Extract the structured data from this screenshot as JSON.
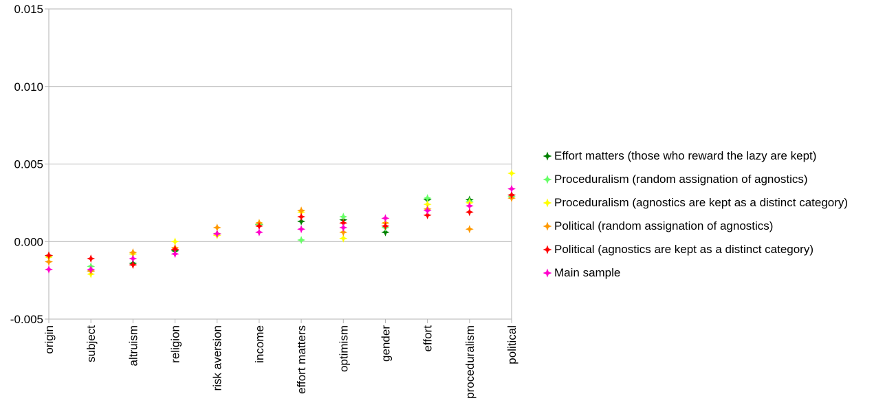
{
  "chart_data": {
    "type": "scatter",
    "title": "",
    "xlabel": "",
    "ylabel": "",
    "ylim": [
      -0.005,
      0.015
    ],
    "yticks": [
      "-0.005",
      "0.000",
      "0.005",
      "0.010",
      "0.015"
    ],
    "ytick_values": [
      -0.005,
      0.0,
      0.005,
      0.01,
      0.015
    ],
    "grid": true,
    "legend_position": "right",
    "categories": [
      "origin",
      "subject",
      "altruism",
      "religion",
      "risk aversion",
      "income",
      "effort matters",
      "optimism",
      "gender",
      "effort",
      "proceduralism",
      "political"
    ],
    "series": [
      {
        "name": "Effort matters (those who reward the lazy are kept)",
        "color": "#008000",
        "values": [
          -0.0009,
          -0.0019,
          -0.0014,
          -0.0006,
          0.0005,
          0.0011,
          0.0013,
          0.0014,
          0.0006,
          0.0027,
          0.0027,
          0.003
        ]
      },
      {
        "name": "Proceduralism (random assignation of agnostics)",
        "color": "#66ff66",
        "values": [
          -0.001,
          -0.0016,
          -0.0008,
          -0.0005,
          0.0005,
          0.0011,
          0.0001,
          0.0016,
          0.0009,
          0.0028,
          0.0026,
          0.0029
        ]
      },
      {
        "name": "Proceduralism (agnostics are kept as a distinct category)",
        "color": "#ffff00",
        "values": [
          -0.001,
          -0.0021,
          -0.0008,
          0.0,
          0.0004,
          0.0012,
          0.0019,
          0.0002,
          0.0012,
          0.0024,
          0.0025,
          0.0044
        ]
      },
      {
        "name": "Political (random assignation of agnostics)",
        "color": "#ff9900",
        "values": [
          -0.0013,
          -0.0019,
          -0.0007,
          -0.0004,
          0.0009,
          0.0012,
          0.002,
          0.0006,
          0.0012,
          0.0021,
          0.0008,
          0.0028
        ]
      },
      {
        "name": "Political (agnostics are kept as a distinct category)",
        "color": "#ff0000",
        "values": [
          -0.0009,
          -0.0011,
          -0.0015,
          -0.0005,
          0.0005,
          0.001,
          0.0016,
          0.0012,
          0.001,
          0.0017,
          0.0019,
          0.003
        ]
      },
      {
        "name": "Main sample",
        "color": "#ff00cc",
        "values": [
          -0.0018,
          -0.0018,
          -0.0011,
          -0.0008,
          0.0005,
          0.0006,
          0.0008,
          0.0009,
          0.0015,
          0.002,
          0.0023,
          0.0034
        ]
      }
    ]
  }
}
